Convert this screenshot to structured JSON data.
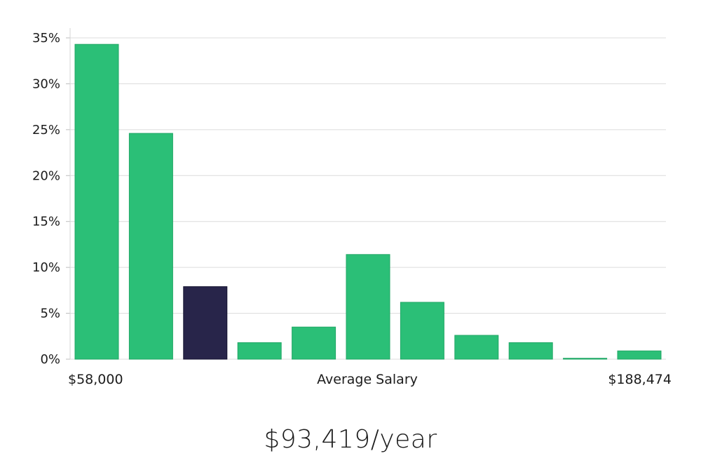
{
  "chart_data": {
    "type": "bar",
    "title": "",
    "xlabel": "Average Salary",
    "ylabel": "",
    "range_start_label": "$58,000",
    "range_end_label": "$188,474",
    "ylim": [
      0,
      35
    ],
    "yticks": [
      "0%",
      "5%",
      "10%",
      "15%",
      "20%",
      "25%",
      "30%",
      "35%"
    ],
    "ytick_values": [
      0,
      5,
      10,
      15,
      20,
      25,
      30,
      35
    ],
    "grid": true,
    "values": [
      34.3,
      24.6,
      7.9,
      1.8,
      3.5,
      11.4,
      6.2,
      2.6,
      1.8,
      0.1,
      0.9
    ],
    "highlight_index": 2,
    "bar_color": "#2bbf77",
    "highlight_color": "#28254a"
  },
  "footer": {
    "average_salary": "$93,419/year"
  }
}
